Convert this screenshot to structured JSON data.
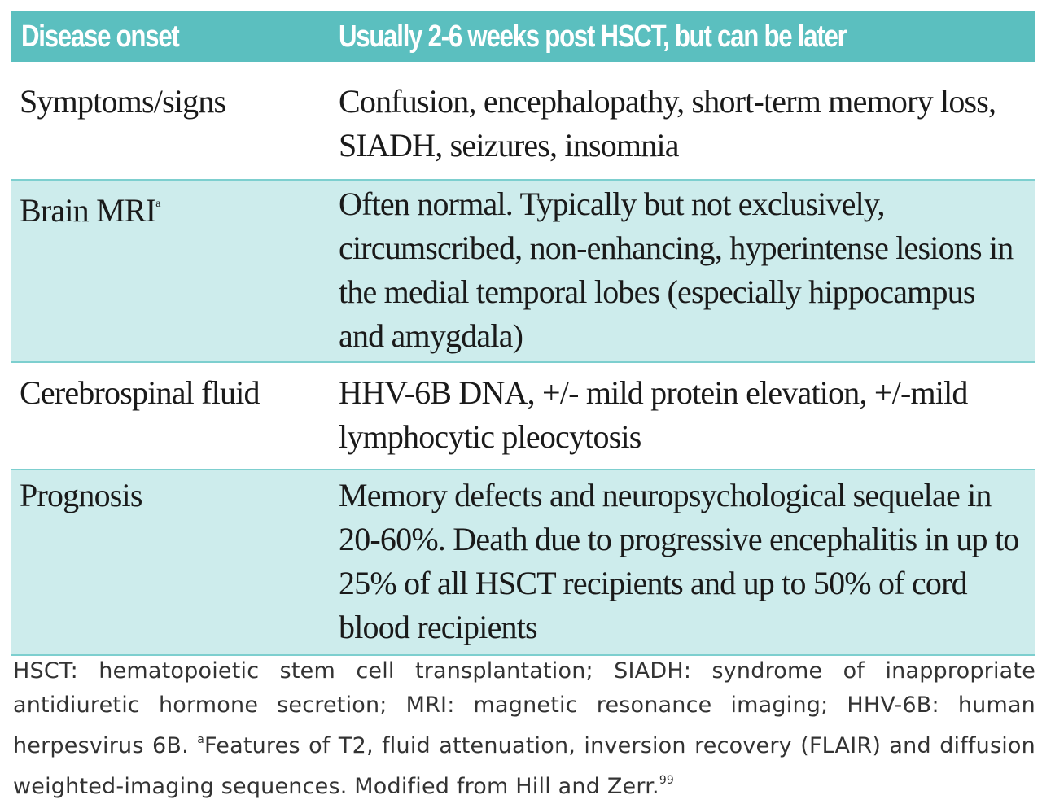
{
  "header": {
    "col1": "Disease onset",
    "col2": "Usually 2-6 weeks post HSCT, but can be later"
  },
  "rows": [
    {
      "label": "Symptoms/signs",
      "text": "Confusion, encephalopathy, short-term memory loss, SIADH, seizures, insomnia"
    },
    {
      "label": "Brain MRI",
      "label_sup": "a",
      "text": "Often normal. Typically but not exclusively, circumscribed, non-enhancing, hyperintense lesions in the medial temporal lobes (especially hippocampus and amygdala)"
    },
    {
      "label": "Cerebrospinal fluid",
      "text": "HHV-6B DNA, +/- mild protein elevation, +/-mild lymphocytic pleocytosis"
    },
    {
      "label": "Prognosis",
      "text": "Memory defects and neuropsychological sequelae in 20-60%. Death due to progressive encephalitis in up to 25% of all HSCT recipients and up to 50% of cord blood recipients"
    }
  ],
  "footnote": {
    "text1": "HSCT: hematopoietic stem cell transplantation; SIADH: syndrome of inappropriate antidiuretic hormone secretion; MRI: magnetic resonance imaging; HHV-6B: human herpesvirus 6B.",
    "sup1": "a",
    "text2": "Features of T2, fluid attenuation, inversion recovery (FLAIR) and diffusion weighted-imaging sequences. Modified from Hill and Zerr.",
    "sup2": "99"
  },
  "colors": {
    "header_bg": "#5bbfbf",
    "tint_row_bg": "#cdecec",
    "rule": "#7dcfcf"
  }
}
